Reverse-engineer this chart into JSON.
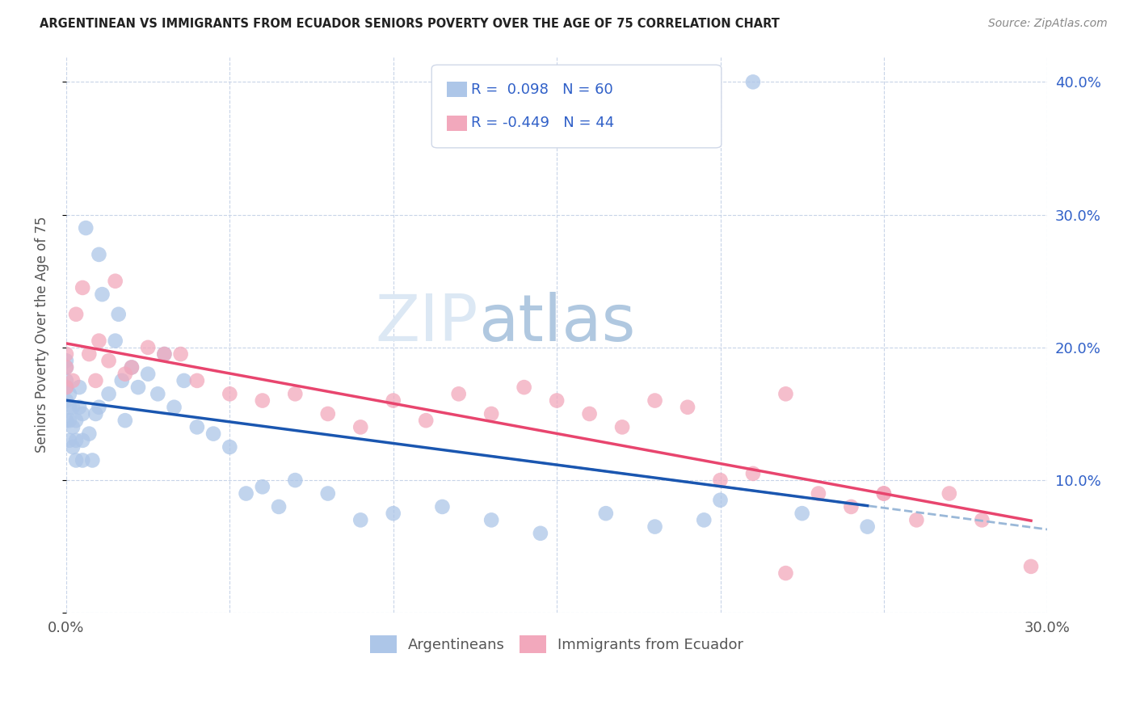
{
  "title": "ARGENTINEAN VS IMMIGRANTS FROM ECUADOR SENIORS POVERTY OVER THE AGE OF 75 CORRELATION CHART",
  "source": "Source: ZipAtlas.com",
  "ylabel": "Seniors Poverty Over the Age of 75",
  "xlim": [
    0.0,
    0.3
  ],
  "ylim": [
    0.0,
    0.42
  ],
  "xticks": [
    0.0,
    0.05,
    0.1,
    0.15,
    0.2,
    0.25,
    0.3
  ],
  "xtick_labels": [
    "0.0%",
    "",
    "",
    "",
    "",
    "",
    "30.0%"
  ],
  "ytick_positions_right": [
    0.0,
    0.1,
    0.2,
    0.3,
    0.4
  ],
  "ytick_labels_right": [
    "",
    "10.0%",
    "20.0%",
    "30.0%",
    "40.0%"
  ],
  "r_argentinean": 0.098,
  "n_argentinean": 60,
  "r_ecuador": -0.449,
  "n_ecuador": 44,
  "color_argentinean": "#adc6e8",
  "color_ecuador": "#f2a8bc",
  "line_color_argentinean": "#1a56b0",
  "line_color_ecuador": "#e8456e",
  "line_color_dashed": "#9ab8d8",
  "background_color": "#ffffff",
  "grid_color": "#c8d4e8",
  "legend_text_color": "#3060c8",
  "watermark_zip": "ZIP",
  "watermark_atlas": "atlas",
  "argentinean_x": [
    0.0,
    0.0,
    0.0,
    0.0,
    0.0,
    0.0,
    0.001,
    0.001,
    0.001,
    0.001,
    0.002,
    0.002,
    0.002,
    0.003,
    0.003,
    0.003,
    0.004,
    0.004,
    0.005,
    0.005,
    0.005,
    0.006,
    0.007,
    0.008,
    0.009,
    0.01,
    0.01,
    0.011,
    0.013,
    0.015,
    0.016,
    0.017,
    0.018,
    0.02,
    0.022,
    0.025,
    0.028,
    0.03,
    0.033,
    0.036,
    0.04,
    0.045,
    0.05,
    0.055,
    0.06,
    0.065,
    0.07,
    0.08,
    0.09,
    0.1,
    0.115,
    0.13,
    0.145,
    0.165,
    0.18,
    0.195,
    0.21,
    0.225,
    0.245,
    0.2
  ],
  "argentinean_y": [
    0.145,
    0.16,
    0.17,
    0.175,
    0.185,
    0.19,
    0.13,
    0.145,
    0.155,
    0.165,
    0.125,
    0.14,
    0.155,
    0.115,
    0.13,
    0.145,
    0.155,
    0.17,
    0.115,
    0.13,
    0.15,
    0.29,
    0.135,
    0.115,
    0.15,
    0.27,
    0.155,
    0.24,
    0.165,
    0.205,
    0.225,
    0.175,
    0.145,
    0.185,
    0.17,
    0.18,
    0.165,
    0.195,
    0.155,
    0.175,
    0.14,
    0.135,
    0.125,
    0.09,
    0.095,
    0.08,
    0.1,
    0.09,
    0.07,
    0.075,
    0.08,
    0.07,
    0.06,
    0.075,
    0.065,
    0.07,
    0.4,
    0.075,
    0.065,
    0.085
  ],
  "ecuador_x": [
    0.0,
    0.0,
    0.0,
    0.002,
    0.003,
    0.005,
    0.007,
    0.009,
    0.01,
    0.013,
    0.015,
    0.018,
    0.02,
    0.025,
    0.03,
    0.035,
    0.04,
    0.05,
    0.06,
    0.07,
    0.08,
    0.09,
    0.1,
    0.11,
    0.12,
    0.13,
    0.14,
    0.15,
    0.16,
    0.17,
    0.18,
    0.19,
    0.2,
    0.21,
    0.22,
    0.23,
    0.24,
    0.25,
    0.26,
    0.27,
    0.28,
    0.295,
    0.25,
    0.22
  ],
  "ecuador_y": [
    0.195,
    0.185,
    0.17,
    0.175,
    0.225,
    0.245,
    0.195,
    0.175,
    0.205,
    0.19,
    0.25,
    0.18,
    0.185,
    0.2,
    0.195,
    0.195,
    0.175,
    0.165,
    0.16,
    0.165,
    0.15,
    0.14,
    0.16,
    0.145,
    0.165,
    0.15,
    0.17,
    0.16,
    0.15,
    0.14,
    0.16,
    0.155,
    0.1,
    0.105,
    0.165,
    0.09,
    0.08,
    0.09,
    0.07,
    0.09,
    0.07,
    0.035,
    0.09,
    0.03
  ]
}
